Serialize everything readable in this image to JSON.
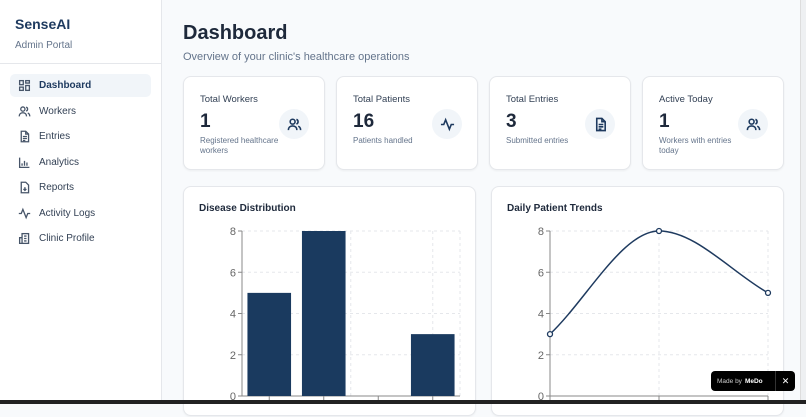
{
  "sidebar": {
    "brand": "SenseAI",
    "subtitle": "Admin Portal",
    "items": [
      {
        "label": "Dashboard",
        "icon": "layout-grid-icon",
        "active": true
      },
      {
        "label": "Workers",
        "icon": "users-icon"
      },
      {
        "label": "Entries",
        "icon": "file-text-icon"
      },
      {
        "label": "Analytics",
        "icon": "bar-chart-icon"
      },
      {
        "label": "Reports",
        "icon": "file-download-icon"
      },
      {
        "label": "Activity Logs",
        "icon": "activity-icon"
      },
      {
        "label": "Clinic Profile",
        "icon": "building-icon"
      }
    ]
  },
  "header": {
    "title": "Dashboard",
    "subtitle": "Overview of your clinic's healthcare operations"
  },
  "stats": [
    {
      "label": "Total Workers",
      "value": "1",
      "desc": "Registered healthcare workers",
      "icon": "users-icon"
    },
    {
      "label": "Total Patients",
      "value": "16",
      "desc": "Patients handled",
      "icon": "activity-icon"
    },
    {
      "label": "Total Entries",
      "value": "3",
      "desc": "Submitted entries",
      "icon": "file-text-icon"
    },
    {
      "label": "Active Today",
      "value": "1",
      "desc": "Workers with entries today",
      "icon": "users-icon"
    }
  ],
  "chart_data": [
    {
      "type": "bar",
      "title": "Disease Distribution",
      "values": [
        5,
        8,
        0,
        3
      ],
      "ylim": [
        0,
        8
      ],
      "yticks": [
        0,
        2,
        4,
        6,
        8
      ],
      "grid": true,
      "color": "#1a3a5f"
    },
    {
      "type": "line",
      "title": "Daily Patient Trends",
      "values": [
        3,
        8,
        5
      ],
      "ylim": [
        0,
        8
      ],
      "yticks": [
        0,
        2,
        4,
        6,
        8
      ],
      "grid": true,
      "color": "#1e3a5f"
    }
  ],
  "badge": {
    "prefix": "Made by",
    "brand": "MeDo",
    "close": "✕"
  }
}
